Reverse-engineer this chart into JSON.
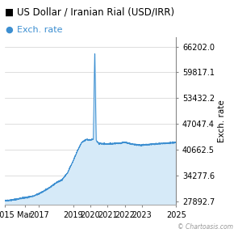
{
  "title": "US Dollar / Iranian Rial (USD/IRR)",
  "legend_label": "Exch. rate",
  "ylabel": "Exch. rate",
  "watermark": "© Chartoasis.com",
  "line_color": "#3d8fd1",
  "fill_color": "#d6eaf8",
  "background_color": "#ffffff",
  "grid_color": "#d0d0d0",
  "yticks": [
    27892.7,
    34277.6,
    40662.5,
    47047.4,
    53432.2,
    59817.1,
    66202.0
  ],
  "xtick_labels": [
    "2015",
    "Mar",
    "2017",
    "2019",
    "2020",
    "2021",
    "2022",
    "2023",
    "2025"
  ],
  "xtick_positions": [
    0,
    14,
    24,
    48,
    60,
    72,
    84,
    96,
    120
  ],
  "xlim": [
    0,
    120
  ],
  "ylim": [
    27000,
    68500
  ],
  "title_fontsize": 8.5,
  "legend_fontsize": 8.0,
  "tick_fontsize": 7.0,
  "ylabel_fontsize": 7.5
}
